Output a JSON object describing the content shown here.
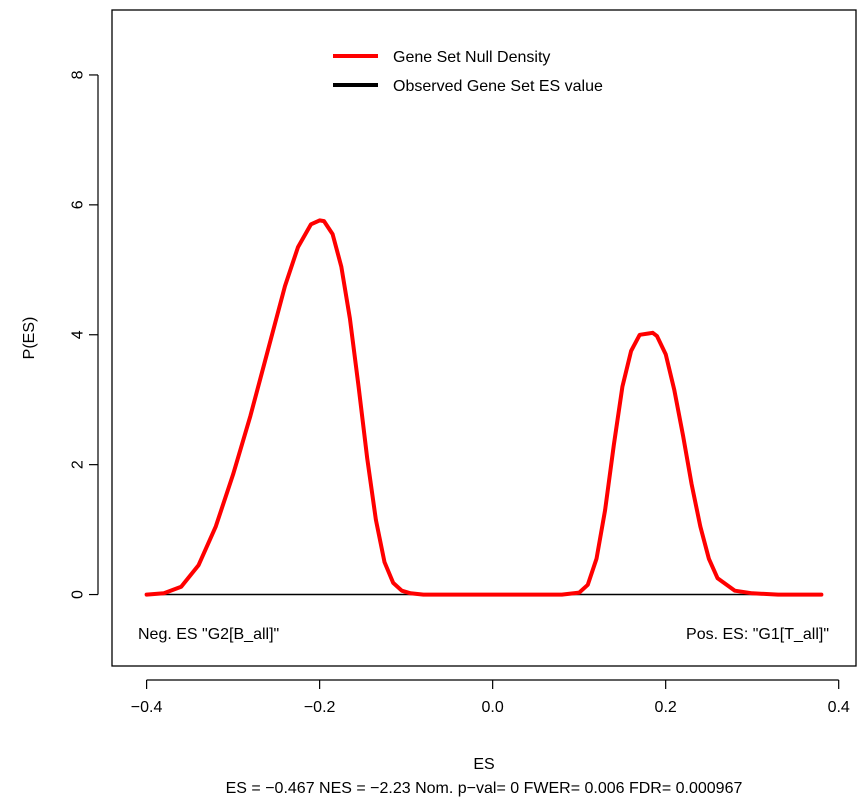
{
  "chart_data": {
    "type": "line",
    "xlabel": "ES",
    "ylabel": "P(ES)",
    "subtitle": "ES = −0.467  NES = −2.23 Nom. p−val= 0 FWER= 0.006 FDR= 0.000967",
    "xlim": [
      -0.44,
      0.42
    ],
    "ylim": [
      -1.1,
      9.0
    ],
    "x_ticks": [
      -0.4,
      -0.2,
      0.0,
      0.2,
      0.4
    ],
    "x_tick_labels": [
      "−0.4",
      "−0.2",
      "0.0",
      "0.2",
      "0.4"
    ],
    "y_ticks": [
      0,
      2,
      4,
      6,
      8
    ],
    "y_tick_labels": [
      "0",
      "2",
      "4",
      "6",
      "8"
    ],
    "legend": {
      "position": "top-center",
      "entries": [
        {
          "label": "Gene Set Null Density",
          "color": "#ff0000"
        },
        {
          "label": "Observed Gene Set ES value",
          "color": "#000000"
        }
      ]
    },
    "series": [
      {
        "name": "Gene Set Null Density",
        "color": "#ff0000",
        "x": [
          -0.4,
          -0.38,
          -0.36,
          -0.34,
          -0.32,
          -0.3,
          -0.28,
          -0.26,
          -0.24,
          -0.225,
          -0.21,
          -0.2,
          -0.195,
          -0.185,
          -0.175,
          -0.165,
          -0.155,
          -0.145,
          -0.135,
          -0.125,
          -0.115,
          -0.105,
          -0.095,
          -0.08,
          -0.06,
          -0.03,
          0.0,
          0.03,
          0.06,
          0.08,
          0.1,
          0.11,
          0.12,
          0.13,
          0.14,
          0.15,
          0.16,
          0.17,
          0.18,
          0.185,
          0.19,
          0.2,
          0.21,
          0.22,
          0.23,
          0.24,
          0.25,
          0.26,
          0.28,
          0.3,
          0.33,
          0.36,
          0.38
        ],
        "y": [
          0.0,
          0.02,
          0.12,
          0.45,
          1.05,
          1.85,
          2.75,
          3.75,
          4.75,
          5.35,
          5.7,
          5.76,
          5.75,
          5.55,
          5.05,
          4.25,
          3.2,
          2.1,
          1.15,
          0.5,
          0.18,
          0.06,
          0.02,
          0.0,
          0.0,
          0.0,
          0.0,
          0.0,
          0.0,
          0.0,
          0.03,
          0.15,
          0.55,
          1.3,
          2.3,
          3.2,
          3.75,
          4.0,
          4.02,
          4.03,
          3.98,
          3.7,
          3.15,
          2.45,
          1.7,
          1.05,
          0.55,
          0.25,
          0.06,
          0.02,
          0.0,
          0.0,
          0.0
        ]
      }
    ],
    "hline": {
      "y": 0,
      "color": "#000000"
    },
    "annotations": [
      {
        "text": "Neg. ES \"G2[B_all]\"",
        "x": -0.4,
        "y": -0.5,
        "align": "left"
      },
      {
        "text": "Pos. ES: \"G1[T_all]\"",
        "x": 0.38,
        "y": -0.5,
        "align": "right"
      }
    ]
  }
}
